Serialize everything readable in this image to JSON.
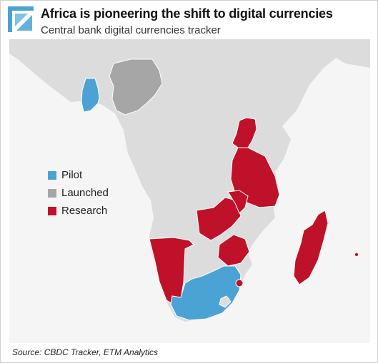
{
  "header": {
    "title": "Africa is pioneering the shift to digital currencies",
    "subtitle": "Central bank digital currencies tracker"
  },
  "legend": {
    "items": [
      {
        "label": "Pilot",
        "color": "#4aa3d4"
      },
      {
        "label": "Launched",
        "color": "#a6a6a6"
      },
      {
        "label": "Research",
        "color": "#c0112a"
      }
    ]
  },
  "map": {
    "base_color": "#dcdcdc",
    "border_color": "#ffffff",
    "countries": [
      {
        "name": "Ghana",
        "status": "Pilot"
      },
      {
        "name": "South Africa",
        "status": "Pilot"
      },
      {
        "name": "Nigeria",
        "status": "Launched"
      },
      {
        "name": "Uganda",
        "status": "Research"
      },
      {
        "name": "Tanzania",
        "status": "Research"
      },
      {
        "name": "Zambia",
        "status": "Research"
      },
      {
        "name": "Malawi",
        "status": "Research"
      },
      {
        "name": "Zimbabwe",
        "status": "Research"
      },
      {
        "name": "Namibia",
        "status": "Research"
      },
      {
        "name": "Eswatini",
        "status": "Research"
      },
      {
        "name": "Madagascar",
        "status": "Research"
      },
      {
        "name": "Mauritius",
        "status": "Research"
      }
    ]
  },
  "source": "Source: CBDC Tracker, ETM Analytics"
}
